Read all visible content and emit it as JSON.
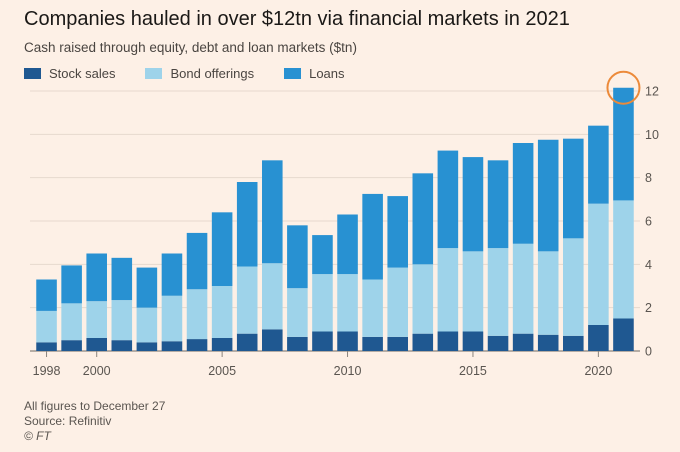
{
  "title": "Companies hauled in over $12tn via financial markets in 2021",
  "subtitle": "Cash raised through equity, debt and loan markets ($tn)",
  "legend": [
    {
      "label": "Stock sales",
      "color": "#1f5891"
    },
    {
      "label": "Bond offerings",
      "color": "#9ed3ea"
    },
    {
      "label": "Loans",
      "color": "#2891d2"
    }
  ],
  "highlight_color": "#ec8a3a",
  "footer": {
    "note": "All figures to December 27",
    "source": "Source: Refinitiv",
    "credit": "© FT"
  },
  "chart_data": {
    "type": "bar",
    "stacked": true,
    "categories": [
      1998,
      1999,
      2000,
      2001,
      2002,
      2003,
      2004,
      2005,
      2006,
      2007,
      2008,
      2009,
      2010,
      2011,
      2012,
      2013,
      2014,
      2015,
      2016,
      2017,
      2018,
      2019,
      2020,
      2021
    ],
    "x_tick_labels": [
      "1998",
      "2000",
      "2005",
      "2010",
      "2015",
      "2020"
    ],
    "y_tick_labels": [
      "0",
      "2",
      "4",
      "6",
      "8",
      "10",
      "12"
    ],
    "ylim": [
      0,
      12
    ],
    "y_axis_position": "right",
    "grid": true,
    "highlighted_category": 2021,
    "series": [
      {
        "name": "Stock sales",
        "color": "#1f5891",
        "values": [
          0.4,
          0.5,
          0.6,
          0.5,
          0.4,
          0.45,
          0.55,
          0.6,
          0.8,
          1.0,
          0.65,
          0.9,
          0.9,
          0.65,
          0.65,
          0.8,
          0.9,
          0.9,
          0.7,
          0.8,
          0.75,
          0.7,
          1.2,
          1.5
        ]
      },
      {
        "name": "Bond offerings",
        "color": "#9ed3ea",
        "values": [
          1.45,
          1.7,
          1.7,
          1.85,
          1.6,
          2.1,
          2.3,
          2.4,
          3.1,
          3.05,
          2.25,
          2.65,
          2.65,
          2.65,
          3.2,
          3.2,
          3.85,
          3.7,
          4.05,
          4.15,
          3.85,
          4.5,
          5.6,
          5.45
        ]
      },
      {
        "name": "Loans",
        "color": "#2891d2",
        "values": [
          1.45,
          1.75,
          2.2,
          1.95,
          1.85,
          1.95,
          2.6,
          3.4,
          3.9,
          4.75,
          2.9,
          1.8,
          2.75,
          3.95,
          3.3,
          4.2,
          4.5,
          4.35,
          4.05,
          4.65,
          5.15,
          4.6,
          3.6,
          5.2
        ]
      }
    ]
  }
}
